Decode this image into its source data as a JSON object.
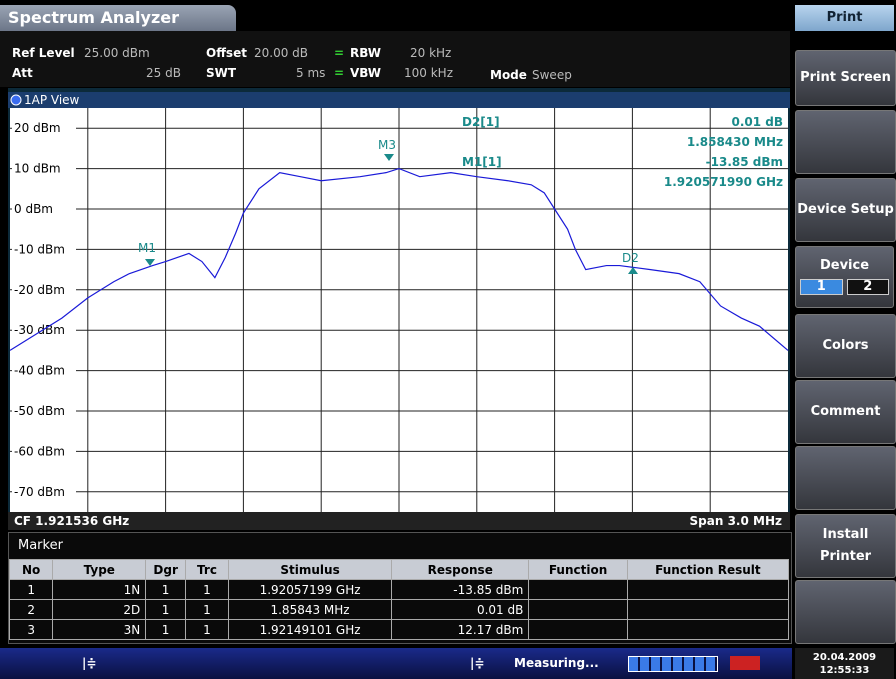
{
  "app_title": "Spectrum Analyzer",
  "settings": {
    "ref_label": "Ref Level",
    "ref_value": "25.00 dBm",
    "offset_label": "Offset",
    "offset_value": "20.00 dB",
    "rbw_label": "RBW",
    "rbw_value": "20 kHz",
    "att_label": "Att",
    "att_value": "25 dB",
    "swt_label": "SWT",
    "swt_value": "5 ms",
    "vbw_label": "VBW",
    "vbw_value": "100 kHz",
    "mode_label": "Mode",
    "mode_value": "Sweep"
  },
  "view_title": "1AP View",
  "y_ticks": [
    {
      "value": 20,
      "label": "20 dBm"
    },
    {
      "value": 10,
      "label": "10 dBm"
    },
    {
      "value": 0,
      "label": "0 dBm"
    },
    {
      "value": -10,
      "label": "-10 dBm"
    },
    {
      "value": -20,
      "label": "-20 dBm"
    },
    {
      "value": -30,
      "label": "-30 dBm"
    },
    {
      "value": -40,
      "label": "-40 dBm"
    },
    {
      "value": -50,
      "label": "-50 dBm"
    },
    {
      "value": -60,
      "label": "-60 dBm"
    },
    {
      "value": -70,
      "label": "-70 dBm"
    }
  ],
  "ylim": [
    25,
    -75
  ],
  "x_range_mhz": [
    -1.5,
    1.5
  ],
  "trace": {
    "offset_mhz": [
      -1.5,
      -1.4,
      -1.3,
      -1.2,
      -1.1,
      -1.04,
      -0.95,
      -0.9,
      -0.81,
      -0.76,
      -0.71,
      -0.67,
      -0.63,
      -0.6,
      -0.54,
      -0.46,
      -0.38,
      -0.3,
      -0.15,
      -0.05,
      0,
      0.08,
      0.2,
      0.3,
      0.42,
      0.51,
      0.56,
      0.6,
      0.65,
      0.68,
      0.72,
      0.8,
      0.85,
      0.97,
      1.08,
      1.16,
      1.24,
      1.32,
      1.39,
      1.5
    ],
    "level_dbm": [
      -35,
      -31,
      -27,
      -22,
      -18,
      -16,
      -14,
      -13,
      -11,
      -13,
      -17,
      -12,
      -6,
      -1,
      5,
      9,
      8,
      7,
      8,
      9,
      10,
      8,
      9,
      8,
      7,
      6,
      4,
      0,
      -5,
      -10,
      -15,
      -14,
      -14,
      -15,
      -16,
      -18,
      -24,
      -27,
      -29,
      -35
    ]
  },
  "plot_markers": {
    "m1": "M1",
    "m3": "M3",
    "d2": "D2"
  },
  "marker_info": {
    "d2_name": "D2[1]",
    "d2_level": "0.01 dB",
    "d2_freq": "1.858430 MHz",
    "m1_name": "M1[1]",
    "m1_level": "-13.85 dBm",
    "m1_freq": "1.920571990 GHz"
  },
  "cf": "CF 1.921536 GHz",
  "span": "Span 3.0 MHz",
  "marker_table": {
    "title": "Marker",
    "headers": [
      "No",
      "Type",
      "Dgr",
      "Trc",
      "Stimulus",
      "Response",
      "Function",
      "Function Result"
    ],
    "rows": [
      [
        "1",
        "1N",
        "1",
        "1",
        "1.92057199 GHz",
        "-13.85 dBm"
      ],
      [
        "2",
        "2D",
        "1",
        "1",
        "1.85843 MHz",
        "0.01 dB"
      ],
      [
        "3",
        "3N",
        "1",
        "1",
        "1.92149101 GHz",
        "12.17 dBm"
      ]
    ]
  },
  "softkeys": {
    "title": "Print",
    "print_screen": "Print Screen",
    "device_setup": "Device Setup",
    "device": "Device",
    "device_options": [
      "1",
      "2"
    ],
    "colors": "Colors",
    "comment": "Comment",
    "install_printer": "Install Printer"
  },
  "status": {
    "measuring": "Measuring...",
    "date": "20.04.2009",
    "time": "12:55:33"
  }
}
